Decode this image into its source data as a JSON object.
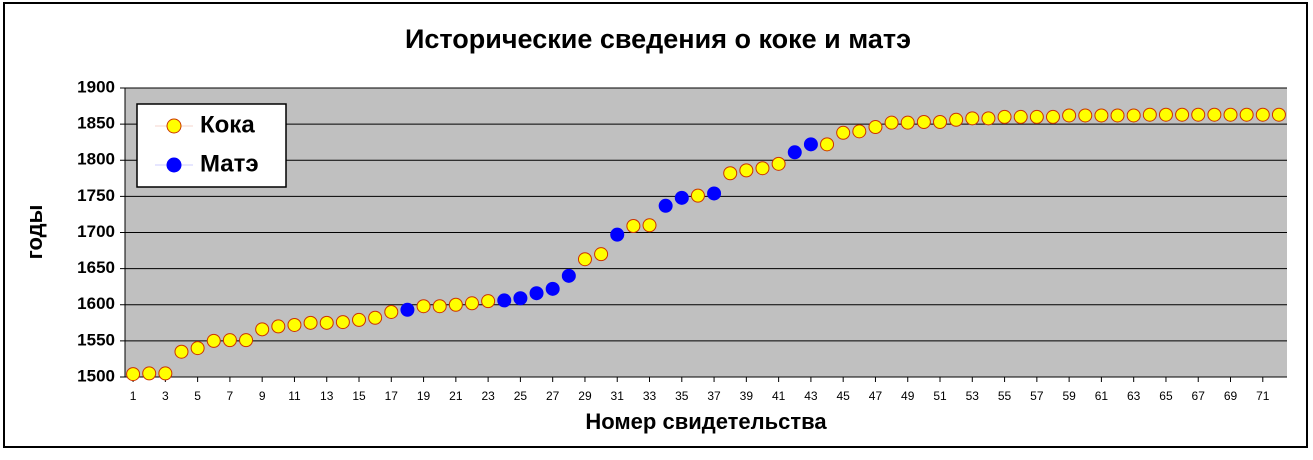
{
  "chart_data": {
    "type": "scatter",
    "title": "Исторические сведения о коке и матэ",
    "x_label": "Номер свидетельства",
    "y_label": "годы",
    "x": [
      1,
      2,
      3,
      4,
      5,
      6,
      7,
      8,
      9,
      10,
      11,
      12,
      13,
      14,
      15,
      16,
      17,
      18,
      19,
      20,
      21,
      22,
      23,
      24,
      25,
      26,
      27,
      28,
      29,
      30,
      31,
      32,
      33,
      34,
      35,
      36,
      37,
      38,
      39,
      40,
      41,
      42,
      43,
      44,
      45,
      46,
      47,
      48,
      49,
      50,
      51,
      52,
      53,
      54,
      55,
      56,
      57,
      58,
      59,
      60,
      61,
      62,
      63,
      64,
      65,
      66,
      67,
      68,
      69,
      70,
      71,
      72
    ],
    "series": [
      {
        "name": "Кока",
        "color": "#ffff00",
        "edgecolor": "#cc3300",
        "values": [
          1504,
          1505,
          1505,
          1535,
          1540,
          1550,
          1551,
          1551,
          1566,
          1570,
          1572,
          1575,
          1575,
          1576,
          1579,
          1582,
          1590,
          null,
          1598,
          1598,
          1600,
          1602,
          1605,
          null,
          null,
          null,
          null,
          null,
          1663,
          1670,
          null,
          1709,
          1710,
          null,
          null,
          1751,
          null,
          1782,
          1786,
          1789,
          1795,
          null,
          null,
          1822,
          1838,
          1840,
          1846,
          1852,
          1852,
          1853,
          1853,
          1856,
          1858,
          1858,
          1860,
          1860,
          1860,
          1860,
          1862,
          1862,
          1862,
          1862,
          1862,
          1863,
          1863,
          1863,
          1863,
          1863,
          1863,
          1863,
          1863,
          1863
        ]
      },
      {
        "name": "Матэ",
        "color": "#0000ff",
        "edgecolor": "#0000ff",
        "values": [
          null,
          null,
          null,
          null,
          null,
          null,
          null,
          null,
          null,
          null,
          null,
          null,
          null,
          null,
          null,
          null,
          null,
          1593,
          null,
          null,
          null,
          null,
          null,
          1606,
          1609,
          1616,
          1622,
          1640,
          null,
          null,
          1697,
          null,
          null,
          1737,
          1748,
          null,
          1754,
          null,
          null,
          null,
          null,
          1811,
          1822,
          null,
          null,
          null,
          null,
          null,
          null,
          null,
          null,
          null,
          null,
          null,
          null,
          null,
          null,
          null,
          null,
          null,
          null,
          null,
          null,
          null,
          null,
          null,
          null,
          null,
          null,
          null,
          null,
          null
        ]
      }
    ],
    "xlim": [
      0.5,
      72.5
    ],
    "xticks": [
      1,
      3,
      5,
      7,
      9,
      11,
      13,
      15,
      17,
      19,
      21,
      23,
      25,
      27,
      29,
      31,
      33,
      35,
      37,
      39,
      41,
      43,
      45,
      47,
      49,
      51,
      53,
      55,
      57,
      59,
      61,
      63,
      65,
      67,
      69,
      71
    ],
    "ylim": [
      1500,
      1900
    ],
    "yticks": [
      1500,
      1550,
      1600,
      1650,
      1700,
      1750,
      1800,
      1850,
      1900
    ],
    "grid": true,
    "legend": "upper left"
  }
}
